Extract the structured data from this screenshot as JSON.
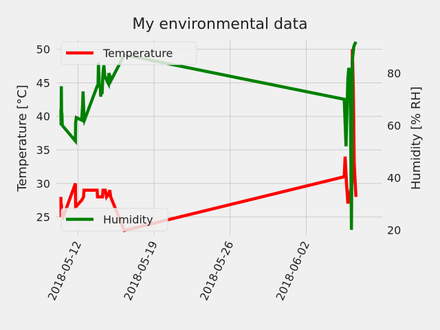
{
  "chart_data": {
    "type": "line",
    "title": "My environmental data",
    "xlabel": "",
    "x_tick_labels": [
      "2018-05-12",
      "2018-05-19",
      "2018-05-26",
      "2018-06-02"
    ],
    "x_ticks": [
      "2018-05-12",
      "2018-05-19",
      "2018-05-26",
      "2018-06-02"
    ],
    "xlim": [
      "2018-05-10",
      "2018-06-09"
    ],
    "grid": true,
    "axes": {
      "left": {
        "label": "Temperature [°C]",
        "ylim": [
          22.3,
          51.5
        ],
        "ticks": [
          25,
          30,
          35,
          40,
          45,
          50
        ]
      },
      "right": {
        "label": "Humidity [% RH]",
        "ylim": [
          18,
          93
        ],
        "ticks": [
          20,
          40,
          60,
          80
        ]
      }
    },
    "legends": [
      {
        "axis": "left",
        "placement": "upper-left",
        "entries": [
          "Temperature"
        ]
      },
      {
        "axis": "right",
        "placement": "lower-left",
        "entries": [
          "Humidity"
        ]
      }
    ],
    "series": [
      {
        "name": "Temperature",
        "axis": "left",
        "color": "#ff0000",
        "points": [
          [
            "2018-05-10T10:00",
            28
          ],
          [
            "2018-05-10T10:30",
            25
          ],
          [
            "2018-05-10T11:00",
            27
          ],
          [
            "2018-05-10T11:30",
            26
          ],
          [
            "2018-05-10T12:00",
            25.5
          ],
          [
            "2018-05-10T15:00",
            25
          ],
          [
            "2018-05-11T18:00",
            30
          ],
          [
            "2018-05-11T18:30",
            26.5
          ],
          [
            "2018-05-12T08:00",
            27.5
          ],
          [
            "2018-05-12T12:00",
            28
          ],
          [
            "2018-05-12T13:00",
            29
          ],
          [
            "2018-05-13T12:00",
            29
          ],
          [
            "2018-05-13T18:00",
            29
          ],
          [
            "2018-05-13T19:00",
            28
          ],
          [
            "2018-05-14T06:00",
            28
          ],
          [
            "2018-05-14T07:00",
            29
          ],
          [
            "2018-05-14T12:00",
            29
          ],
          [
            "2018-05-14T15:00",
            28
          ],
          [
            "2018-05-14T20:00",
            28.5
          ],
          [
            "2018-05-14T22:00",
            29
          ],
          [
            "2018-05-15T00:00",
            28
          ],
          [
            "2018-05-16T06:00",
            23
          ],
          [
            "2018-06-05T12:00",
            31
          ],
          [
            "2018-06-05T14:00",
            34
          ],
          [
            "2018-06-05T17:00",
            30
          ],
          [
            "2018-06-05T20:00",
            27
          ],
          [
            "2018-06-06T05:00",
            30
          ],
          [
            "2018-06-06T06:00",
            50
          ],
          [
            "2018-06-06T08:00",
            44
          ],
          [
            "2018-06-06T10:00",
            33
          ],
          [
            "2018-06-06T13:00",
            29
          ],
          [
            "2018-06-06T14:00",
            28
          ]
        ]
      },
      {
        "name": "Humidity",
        "axis": "right",
        "color": "#008000",
        "points": [
          [
            "2018-05-10T10:00",
            66
          ],
          [
            "2018-05-10T10:30",
            60
          ],
          [
            "2018-05-10T11:00",
            75
          ],
          [
            "2018-05-10T11:30",
            63
          ],
          [
            "2018-05-10T12:00",
            65
          ],
          [
            "2018-05-10T13:00",
            60
          ],
          [
            "2018-05-11T18:00",
            54
          ],
          [
            "2018-05-11T18:30",
            61
          ],
          [
            "2018-05-11T20:00",
            63
          ],
          [
            "2018-05-12T08:00",
            62
          ],
          [
            "2018-05-12T10:00",
            68
          ],
          [
            "2018-05-12T11:00",
            73
          ],
          [
            "2018-05-12T13:00",
            63
          ],
          [
            "2018-05-12T14:00",
            62
          ],
          [
            "2018-05-13T18:00",
            75
          ],
          [
            "2018-05-13T20:00",
            75
          ],
          [
            "2018-05-13T21:00",
            84
          ],
          [
            "2018-05-13T23:00",
            75
          ],
          [
            "2018-05-14T01:00",
            75
          ],
          [
            "2018-05-14T02:00",
            71
          ],
          [
            "2018-05-14T04:00",
            75
          ],
          [
            "2018-05-14T05:00",
            72
          ],
          [
            "2018-05-14T07:00",
            80
          ],
          [
            "2018-05-14T09:00",
            83
          ],
          [
            "2018-05-14T11:00",
            79
          ],
          [
            "2018-05-14T16:00",
            77
          ],
          [
            "2018-05-14T19:00",
            76
          ],
          [
            "2018-05-14T20:00",
            80
          ],
          [
            "2018-05-14T22:00",
            79
          ],
          [
            "2018-05-15T00:00",
            77
          ],
          [
            "2018-05-16T06:00",
            87
          ],
          [
            "2018-06-05T12:00",
            70
          ],
          [
            "2018-06-05T16:00",
            52
          ],
          [
            "2018-06-05T20:00",
            78
          ],
          [
            "2018-06-05T22:00",
            82
          ],
          [
            "2018-06-06T01:00",
            80
          ],
          [
            "2018-06-06T04:00",
            20
          ],
          [
            "2018-06-06T06:00",
            85
          ],
          [
            "2018-06-06T09:00",
            90
          ],
          [
            "2018-06-06T11:00",
            91
          ],
          [
            "2018-06-06T14:00",
            92
          ]
        ]
      }
    ]
  }
}
